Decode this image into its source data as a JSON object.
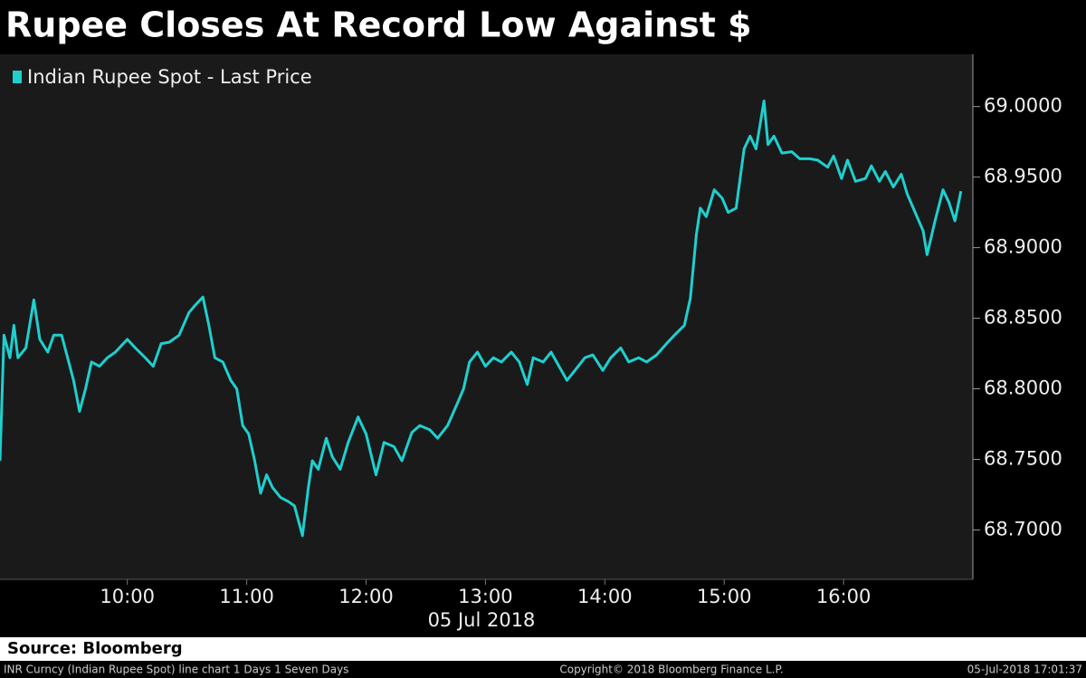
{
  "chart_data": {
    "type": "line",
    "title": "Rupee Closes At Record Low Against $",
    "date": "05 Jul 2018",
    "source": "Source: Bloomberg",
    "footer_left": "INR Curncy (Indian Rupee Spot) line chart 1 Days 1 Seven Days",
    "footer_center": "Copyright© 2018 Bloomberg Finance L.P.",
    "footer_right": "05-Jul-2018 17:01:37",
    "legend": "upper left",
    "x": [
      -4,
      -2,
      1,
      3,
      5,
      9,
      13,
      16,
      20,
      23,
      27,
      30,
      33,
      36,
      39,
      42,
      46,
      50,
      54,
      60,
      64,
      69,
      73,
      77,
      81,
      86,
      91,
      94,
      98,
      101,
      104,
      108,
      112,
      115,
      118,
      121,
      124,
      127,
      130,
      133,
      137,
      141,
      144,
      148,
      151,
      153,
      156,
      160,
      163,
      167,
      171,
      176,
      180,
      185,
      189,
      194,
      198,
      203,
      207,
      212,
      216,
      221,
      226,
      229,
      232,
      236,
      240,
      244,
      248,
      253,
      257,
      261,
      264,
      269,
      273,
      277,
      281,
      285,
      290,
      294,
      299,
      303,
      308,
      312,
      317,
      321,
      326,
      331,
      335,
      340,
      343,
      346,
      348,
      351,
      355,
      359,
      362,
      366,
      370,
      373,
      376,
      380,
      382,
      385,
      389,
      394,
      398,
      403,
      407,
      412,
      415,
      419,
      422,
      426,
      431,
      434,
      438,
      441,
      445,
      449,
      452,
      456,
      460,
      462,
      466,
      470,
      473,
      476,
      479
    ],
    "series": [
      {
        "name": "Indian Rupee Spot - Last Price",
        "color": "#1fcfcf",
        "values": [
          68.749,
          68.838,
          68.822,
          68.845,
          68.822,
          68.829,
          68.863,
          68.835,
          68.826,
          68.838,
          68.838,
          68.822,
          68.806,
          68.784,
          68.8,
          68.819,
          68.816,
          68.822,
          68.826,
          68.835,
          68.829,
          68.822,
          68.816,
          68.832,
          68.833,
          68.838,
          68.854,
          68.859,
          68.865,
          68.845,
          68.822,
          68.819,
          68.806,
          68.8,
          68.774,
          68.768,
          68.749,
          68.726,
          68.739,
          68.73,
          68.723,
          68.72,
          68.717,
          68.696,
          68.73,
          68.749,
          68.743,
          68.765,
          68.752,
          68.743,
          68.762,
          68.78,
          68.768,
          68.739,
          68.762,
          68.759,
          68.749,
          68.769,
          68.774,
          68.771,
          68.765,
          68.774,
          68.79,
          68.8,
          68.819,
          68.826,
          68.816,
          68.822,
          68.819,
          68.826,
          68.819,
          68.803,
          68.822,
          68.819,
          68.826,
          68.816,
          68.806,
          68.813,
          68.822,
          68.824,
          68.813,
          68.822,
          68.829,
          68.819,
          68.822,
          68.819,
          68.824,
          68.832,
          68.838,
          68.845,
          68.864,
          68.909,
          68.928,
          68.922,
          68.941,
          68.935,
          68.925,
          68.928,
          68.97,
          68.979,
          68.97,
          69.004,
          68.973,
          68.979,
          68.967,
          68.968,
          68.963,
          68.963,
          68.962,
          68.957,
          68.965,
          68.949,
          68.962,
          68.947,
          68.949,
          68.958,
          68.947,
          68.954,
          68.943,
          68.952,
          68.938,
          68.925,
          68.912,
          68.895,
          68.919,
          68.941,
          68.932,
          68.919,
          68.94
        ]
      }
    ],
    "xlim": [
      -4,
      485
    ],
    "xticks": [
      {
        "value": 60,
        "label": "10:00"
      },
      {
        "value": 120,
        "label": "11:00"
      },
      {
        "value": 180,
        "label": "12:00"
      },
      {
        "value": 240,
        "label": "13:00"
      },
      {
        "value": 300,
        "label": "14:00"
      },
      {
        "value": 360,
        "label": "15:00"
      },
      {
        "value": 420,
        "label": "16:00"
      }
    ],
    "ylim": [
      68.665,
      69.037
    ],
    "yticks": [
      {
        "value": 68.7,
        "label": "68.7000"
      },
      {
        "value": 68.75,
        "label": "68.7500"
      },
      {
        "value": 68.8,
        "label": "68.8000"
      },
      {
        "value": 68.85,
        "label": "68.8500"
      },
      {
        "value": 68.9,
        "label": "68.9000"
      },
      {
        "value": 68.95,
        "label": "68.9500"
      },
      {
        "value": 69,
        "label": "69.0000"
      }
    ]
  }
}
